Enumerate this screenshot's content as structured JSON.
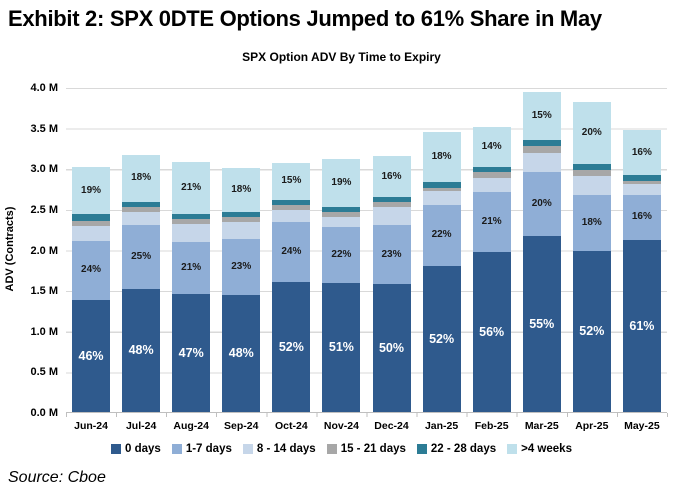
{
  "header": {
    "title": "Exhibit 2: SPX 0DTE Options Jumped to 61% Share in May"
  },
  "footer": {
    "source": "Source: Cboe"
  },
  "chart_data": {
    "type": "bar",
    "variant": "stacked-column",
    "title": "SPX Option ADV By Time to Expiry",
    "xlabel": "",
    "ylabel": "ADV (Contracts)",
    "ylim": [
      0,
      4.0
    ],
    "grid": true,
    "legend_position": "bottom",
    "y_ticks": [
      "4.0 M",
      "3.5 M",
      "3.0 M",
      "2.5 M",
      "2.0 M",
      "1.5 M",
      "1.0 M",
      "0.5 M",
      "0.0 M"
    ],
    "categories": [
      "Jun-24",
      "Jul-24",
      "Aug-24",
      "Sep-24",
      "Oct-24",
      "Nov-24",
      "Dec-24",
      "Jan-25",
      "Feb-25",
      "Mar-25",
      "Apr-25",
      "May-25"
    ],
    "totals_millions": [
      3.01,
      3.16,
      3.08,
      3.0,
      3.07,
      3.12,
      3.15,
      3.45,
      3.51,
      3.94,
      3.82,
      3.47
    ],
    "series": [
      {
        "name": "0 days",
        "color": "#2F5A8D",
        "label_style": "big",
        "show_labels": true,
        "pct_of_total": [
          46,
          48,
          47,
          48,
          52,
          51,
          50,
          52,
          56,
          55,
          52,
          61
        ]
      },
      {
        "name": "1-7 days",
        "color": "#8FAED6",
        "label_style": "small",
        "show_labels": true,
        "pct_of_total": [
          24,
          25,
          21,
          23,
          24,
          22,
          23,
          22,
          21,
          20,
          18,
          16
        ]
      },
      {
        "name": "8 - 14 days",
        "color": "#C6D6E9",
        "label_style": "small",
        "show_labels": false,
        "pct_of_total": [
          6,
          5,
          7,
          7,
          5,
          4,
          7,
          5,
          5,
          6,
          6,
          4
        ]
      },
      {
        "name": "15 - 21 days",
        "color": "#A7A7A7",
        "label_style": "small",
        "show_labels": false,
        "pct_of_total": [
          2,
          2,
          2,
          2,
          2,
          2,
          2,
          1,
          2,
          2,
          2,
          1
        ]
      },
      {
        "name": "22 - 28 days",
        "color": "#2C7C95",
        "label_style": "small",
        "show_labels": false,
        "pct_of_total": [
          3,
          2,
          2,
          2,
          2,
          2,
          2,
          2,
          2,
          2,
          2,
          2
        ]
      },
      {
        "name": ">4 weeks",
        "color": "#BFE0EB",
        "label_style": "small",
        "show_labels": true,
        "pct_of_total": [
          19,
          18,
          21,
          18,
          15,
          19,
          16,
          18,
          14,
          15,
          20,
          16
        ]
      }
    ],
    "colors": {
      "gridline": "#D9D9D9",
      "axis_line": "#BFBFBF",
      "label_on_dark": "#FFFFFF",
      "label_on_light": "#1A1A1A"
    }
  }
}
